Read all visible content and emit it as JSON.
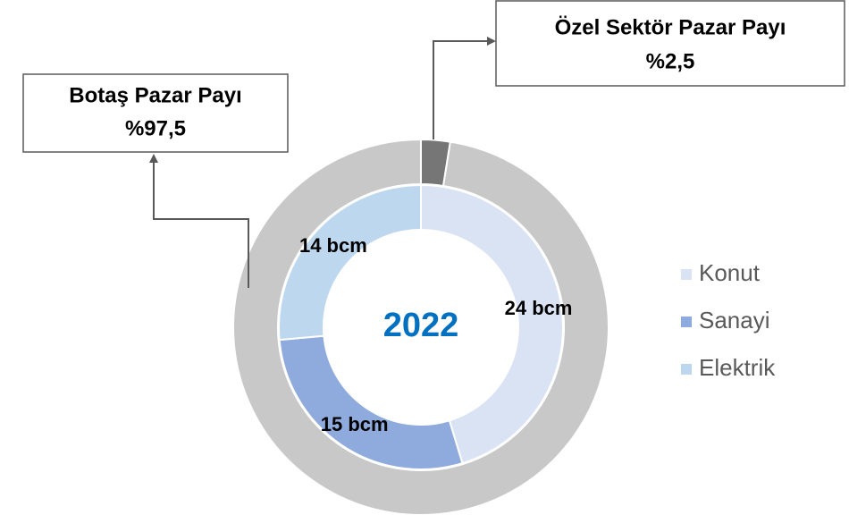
{
  "chart_data": {
    "type": "donut",
    "center_label": "2022",
    "rings": [
      {
        "categories": [
          "Konut",
          "Sanayi",
          "Elektrik"
        ],
        "values": [
          24,
          15,
          14
        ],
        "value_labels": [
          "24 bcm",
          "15 bcm",
          "14 bcm"
        ],
        "colors": [
          "#dae3f3",
          "#8faadc",
          "#bdd7ee"
        ]
      },
      {
        "categories": [
          "Özel Sektör Pazar Payı",
          "Botaş Pazar Payı"
        ],
        "values": [
          2.5,
          97.5
        ],
        "value_labels": [
          "%2,5",
          "%97,5"
        ],
        "colors": [
          "#767676",
          "#c8c8c8"
        ]
      }
    ],
    "legend": "right"
  }
}
